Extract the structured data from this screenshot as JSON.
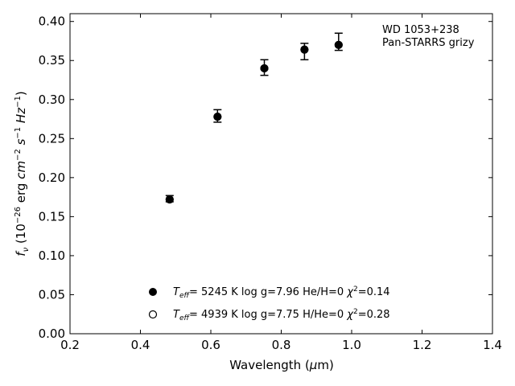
{
  "chart_data": {
    "type": "scatter",
    "xlabel_main": "Wavelength (",
    "xlabel_mu": "μ",
    "xlabel_unit": "m)",
    "ylabel": {
      "f": "f",
      "nu": "ν",
      "open": " (10",
      "exp1": "−26",
      "erg": " erg ",
      "cm": "cm",
      "exp2": "−2",
      "s": " s",
      "exp3": "−1",
      "hz": " Hz",
      "exp4": "−1",
      "close": ")"
    },
    "xlim": [
      0.2,
      1.4
    ],
    "ylim": [
      0.0,
      0.41
    ],
    "x_ticks": [
      "0.2",
      "0.4",
      "0.6",
      "0.8",
      "1.0",
      "1.2",
      "1.4"
    ],
    "y_ticks": [
      "0.00",
      "0.05",
      "0.10",
      "0.15",
      "0.20",
      "0.25",
      "0.30",
      "0.35",
      "0.40"
    ],
    "annotation": [
      "WD 1053+238",
      "Pan-STARRS grizy"
    ],
    "observed": [
      {
        "x": 0.483,
        "y": 0.173,
        "ylow": 0.169,
        "yhigh": 0.177
      },
      {
        "x": 0.619,
        "y": 0.279,
        "ylow": 0.271,
        "yhigh": 0.287
      },
      {
        "x": 0.752,
        "y": 0.341,
        "ylow": 0.331,
        "yhigh": 0.351
      },
      {
        "x": 0.866,
        "y": 0.366,
        "ylow": 0.351,
        "yhigh": 0.372
      },
      {
        "x": 0.963,
        "y": 0.372,
        "ylow": 0.363,
        "yhigh": 0.385
      }
    ],
    "model_filled": [
      {
        "x": 0.483,
        "y": 0.172
      },
      {
        "x": 0.619,
        "y": 0.278
      },
      {
        "x": 0.752,
        "y": 0.34
      },
      {
        "x": 0.866,
        "y": 0.364
      },
      {
        "x": 0.963,
        "y": 0.37
      }
    ],
    "model_open": [
      {
        "x": 0.483,
        "y": 0.172
      },
      {
        "x": 0.619,
        "y": 0.278
      },
      {
        "x": 0.752,
        "y": 0.34
      },
      {
        "x": 0.866,
        "y": 0.364
      },
      {
        "x": 0.963,
        "y": 0.37
      }
    ],
    "legend": [
      {
        "marker": "filled",
        "T": "T",
        "sub": "eff",
        "params": "=  5245 K  log g=7.96  He/H=0  ",
        "chi": "χ",
        "chi_exp": "2",
        "chi_val": "=0.14"
      },
      {
        "marker": "open",
        "T": "T",
        "sub": "eff",
        "params": "=  4939 K  log g=7.75  H/He=0  ",
        "chi": "χ",
        "chi_exp": "2",
        "chi_val": "=0.28"
      }
    ],
    "grid": false,
    "legend_position": "bottom-center"
  }
}
